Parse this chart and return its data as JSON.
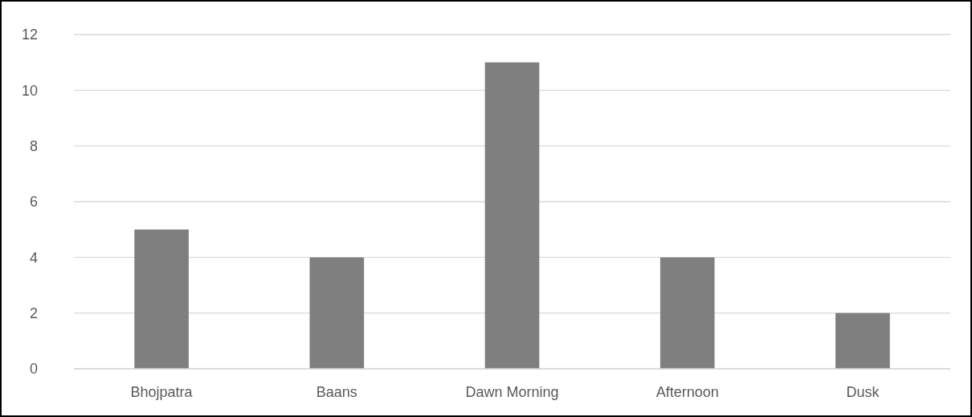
{
  "chart_data": {
    "type": "bar",
    "categories": [
      "Bhojpatra",
      "Baans",
      "Dawn Morning",
      "Afternoon",
      "Dusk"
    ],
    "values": [
      5,
      4,
      11,
      4,
      2
    ],
    "color": "#7f7f7f",
    "ylim": [
      0,
      12
    ],
    "yticks": [
      0,
      2,
      4,
      6,
      8,
      10,
      12
    ],
    "grid": "y"
  }
}
